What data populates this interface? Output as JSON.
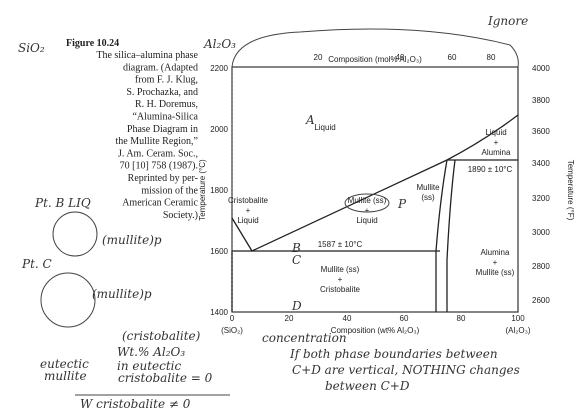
{
  "caption": {
    "figure": "Figure 10.24",
    "lines": [
      "The silica–alumina phase",
      "diagram. (Adapted",
      "from F. J. Klug,",
      "S. Prochazka, and",
      "R. H. Doremus,",
      "“Alumina-Silica",
      "Phase Diagram in",
      "the Mullite Region,”",
      "J. Am. Ceram. Soc.,",
      "70 [10] 758 (1987).",
      "Reprinted by per-",
      "mission of the",
      "American Ceramic",
      "Society.)"
    ]
  },
  "diagram": {
    "top_axis_title": "Composition (mol% Al₂O₃)",
    "top_ticks": [
      "20",
      "40",
      "60",
      "80"
    ],
    "bottom_axis_title": "Composition (wt% Al₂O₃)",
    "bottom_ticks": [
      "0",
      "20",
      "40",
      "60",
      "80",
      "100"
    ],
    "left_end": "(SiO₂)",
    "right_end": "(Al₂O₃)",
    "left_axis_title": "Temperature (°C)",
    "left_ticks": [
      "1400",
      "1600",
      "1800",
      "2000",
      "2200"
    ],
    "right_axis_title": "Temperature (°F)",
    "right_ticks": [
      "2600",
      "2800",
      "3000",
      "3200",
      "3400",
      "3600",
      "3800",
      "4000"
    ],
    "regions": [
      [
        "Liquid"
      ],
      [
        "Cristobalite",
        "+",
        "Liquid"
      ],
      [
        "Mullite (ss)",
        "+",
        "Liquid"
      ],
      [
        "Mullite",
        "(ss)"
      ],
      [
        "Liquid",
        "+",
        "Alumina"
      ],
      [
        "Alumina",
        "+",
        "Mullite (ss)"
      ],
      [
        "Mullite (ss)",
        "+",
        "Cristobalite"
      ]
    ],
    "isotherms": [
      "1587 ± 10°C",
      "1890 ± 10°C"
    ]
  },
  "annotations": [
    "Ignore",
    "Al₂O₃",
    "SiO₂",
    "A",
    "B",
    "C",
    "D",
    "P",
    "Pt. B LIQ",
    "(mullite)p",
    "Pt. C",
    "(mullite)p",
    "eutectic",
    "mullite",
    "(cristobalite)",
    "Wt.% Al₂O₃",
    "in eutectic",
    "cristobalite = 0",
    "concentration",
    "If both phase boundaries between",
    "C+D are vertical, NOTHING changes",
    "between C+D",
    "W cristobalite ≠ 0"
  ]
}
